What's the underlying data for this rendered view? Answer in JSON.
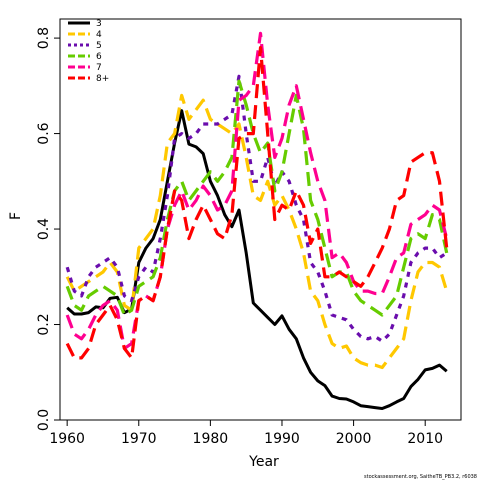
{
  "chart_data": {
    "type": "line",
    "xlabel": "Year",
    "ylabel": "F",
    "xlim": [
      1959,
      2015
    ],
    "ylim": [
      0,
      0.84
    ],
    "x_ticks": [
      "1960",
      "1970",
      "1980",
      "1990",
      "2000",
      "2010"
    ],
    "y_ticks": [
      "0.0",
      "0.2",
      "0.4",
      "0.6",
      "0.8"
    ],
    "legend_position": "top-left",
    "grid": false,
    "credit": "stockassessment.org, SaitheTB_PB3.2, r6038",
    "series": [
      {
        "name": "3",
        "color": "#000000",
        "dash": "solid",
        "x": [
          1960,
          1961,
          1962,
          1963,
          1964,
          1965,
          1966,
          1967,
          1968,
          1969,
          1970,
          1971,
          1972,
          1973,
          1974,
          1975,
          1976,
          1977,
          1978,
          1979,
          1980,
          1981,
          1982,
          1983,
          1984,
          1985,
          1986,
          1987,
          1988,
          1989,
          1990,
          1991,
          1992,
          1993,
          1994,
          1995,
          1996,
          1997,
          1998,
          1999,
          2000,
          2001,
          2002,
          2003,
          2004,
          2005,
          2006,
          2007,
          2008,
          2009,
          2010,
          2011,
          2012,
          2013
        ],
        "y": [
          0.235,
          0.222,
          0.222,
          0.225,
          0.237,
          0.235,
          0.255,
          0.257,
          0.225,
          0.232,
          0.33,
          0.36,
          0.38,
          0.42,
          0.5,
          0.58,
          0.648,
          0.578,
          0.572,
          0.558,
          0.5,
          0.47,
          0.43,
          0.405,
          0.44,
          0.35,
          0.245,
          0.23,
          0.215,
          0.2,
          0.218,
          0.19,
          0.17,
          0.13,
          0.1,
          0.082,
          0.072,
          0.05,
          0.045,
          0.044,
          0.038,
          0.03,
          0.028,
          0.026,
          0.024,
          0.03,
          0.038,
          0.045,
          0.07,
          0.085,
          0.105,
          0.108,
          0.115,
          0.102
        ]
      },
      {
        "name": "4",
        "color": "#ffc800",
        "dash": "long",
        "x": [
          1960,
          1961,
          1962,
          1963,
          1964,
          1965,
          1966,
          1967,
          1968,
          1969,
          1970,
          1971,
          1972,
          1973,
          1974,
          1975,
          1976,
          1977,
          1978,
          1979,
          1980,
          1981,
          1982,
          1983,
          1984,
          1985,
          1986,
          1987,
          1988,
          1989,
          1990,
          1991,
          1992,
          1993,
          1994,
          1995,
          1996,
          1997,
          1998,
          1999,
          2000,
          2001,
          2002,
          2003,
          2004,
          2005,
          2006,
          2007,
          2008,
          2009,
          2010,
          2011,
          2012,
          2013
        ],
        "y": [
          0.3,
          0.27,
          0.28,
          0.29,
          0.3,
          0.31,
          0.33,
          0.31,
          0.24,
          0.23,
          0.36,
          0.38,
          0.4,
          0.47,
          0.58,
          0.6,
          0.68,
          0.63,
          0.65,
          0.67,
          0.63,
          0.62,
          0.61,
          0.6,
          0.62,
          0.55,
          0.47,
          0.46,
          0.5,
          0.45,
          0.47,
          0.44,
          0.4,
          0.35,
          0.27,
          0.25,
          0.2,
          0.16,
          0.15,
          0.155,
          0.13,
          0.12,
          0.115,
          0.115,
          0.11,
          0.13,
          0.15,
          0.17,
          0.25,
          0.31,
          0.33,
          0.33,
          0.32,
          0.27
        ]
      },
      {
        "name": "5",
        "color": "#6a0dad",
        "dash": "dot",
        "x": [
          1960,
          1961,
          1962,
          1963,
          1964,
          1965,
          1966,
          1967,
          1968,
          1969,
          1970,
          1971,
          1972,
          1973,
          1974,
          1975,
          1976,
          1977,
          1978,
          1979,
          1980,
          1981,
          1982,
          1983,
          1984,
          1985,
          1986,
          1987,
          1988,
          1989,
          1990,
          1991,
          1992,
          1993,
          1994,
          1995,
          1996,
          1997,
          1998,
          1999,
          2000,
          2001,
          2002,
          2003,
          2004,
          2005,
          2006,
          2007,
          2008,
          2009,
          2010,
          2011,
          2012,
          2013
        ],
        "y": [
          0.32,
          0.27,
          0.26,
          0.3,
          0.32,
          0.33,
          0.34,
          0.32,
          0.26,
          0.25,
          0.3,
          0.32,
          0.31,
          0.38,
          0.47,
          0.59,
          0.6,
          0.59,
          0.6,
          0.62,
          0.62,
          0.62,
          0.63,
          0.64,
          0.72,
          0.6,
          0.5,
          0.5,
          0.55,
          0.49,
          0.52,
          0.5,
          0.45,
          0.42,
          0.33,
          0.31,
          0.27,
          0.22,
          0.215,
          0.21,
          0.19,
          0.175,
          0.17,
          0.175,
          0.165,
          0.18,
          0.22,
          0.26,
          0.33,
          0.35,
          0.36,
          0.36,
          0.34,
          0.35
        ]
      },
      {
        "name": "6",
        "color": "#66cc00",
        "dash": "long",
        "x": [
          1960,
          1961,
          1962,
          1963,
          1964,
          1965,
          1966,
          1967,
          1968,
          1969,
          1970,
          1971,
          1972,
          1973,
          1974,
          1975,
          1976,
          1977,
          1978,
          1979,
          1980,
          1981,
          1982,
          1983,
          1984,
          1985,
          1986,
          1987,
          1988,
          1989,
          1990,
          1991,
          1992,
          1993,
          1994,
          1995,
          1996,
          1997,
          1998,
          1999,
          2000,
          2001,
          2002,
          2003,
          2004,
          2005,
          2006,
          2007,
          2008,
          2009,
          2010,
          2011,
          2012,
          2013
        ],
        "y": [
          0.28,
          0.24,
          0.23,
          0.26,
          0.27,
          0.28,
          0.27,
          0.26,
          0.22,
          0.23,
          0.28,
          0.29,
          0.3,
          0.34,
          0.42,
          0.48,
          0.5,
          0.46,
          0.48,
          0.5,
          0.52,
          0.5,
          0.52,
          0.55,
          0.71,
          0.66,
          0.6,
          0.56,
          0.58,
          0.48,
          0.52,
          0.6,
          0.68,
          0.61,
          0.46,
          0.42,
          0.36,
          0.3,
          0.31,
          0.31,
          0.27,
          0.25,
          0.24,
          0.23,
          0.22,
          0.24,
          0.26,
          0.32,
          0.38,
          0.39,
          0.38,
          0.43,
          0.42,
          0.35
        ]
      },
      {
        "name": "7",
        "color": "#ff0090",
        "dash": "long",
        "x": [
          1960,
          1961,
          1962,
          1963,
          1964,
          1965,
          1966,
          1967,
          1968,
          1969,
          1970,
          1971,
          1972,
          1973,
          1974,
          1975,
          1976,
          1977,
          1978,
          1979,
          1980,
          1981,
          1982,
          1983,
          1984,
          1985,
          1986,
          1987,
          1988,
          1989,
          1990,
          1991,
          1992,
          1993,
          1994,
          1995,
          1996,
          1997,
          1998,
          1999,
          2000,
          2001,
          2002,
          2003,
          2004,
          2005,
          2006,
          2007,
          2008,
          2009,
          2010,
          2011,
          2012,
          2013
        ],
        "y": [
          0.22,
          0.18,
          0.17,
          0.19,
          0.22,
          0.24,
          0.25,
          0.23,
          0.15,
          0.16,
          0.25,
          0.26,
          0.25,
          0.3,
          0.4,
          0.45,
          0.48,
          0.44,
          0.46,
          0.49,
          0.47,
          0.44,
          0.45,
          0.48,
          0.67,
          0.68,
          0.7,
          0.81,
          0.66,
          0.55,
          0.59,
          0.66,
          0.7,
          0.63,
          0.56,
          0.5,
          0.46,
          0.34,
          0.35,
          0.33,
          0.29,
          0.27,
          0.27,
          0.265,
          0.265,
          0.3,
          0.34,
          0.35,
          0.41,
          0.42,
          0.43,
          0.45,
          0.44,
          0.38
        ]
      },
      {
        "name": "8+",
        "color": "#ff0000",
        "dash": "long",
        "x": [
          1960,
          1961,
          1962,
          1963,
          1964,
          1965,
          1966,
          1967,
          1968,
          1969,
          1970,
          1971,
          1972,
          1973,
          1974,
          1975,
          1976,
          1977,
          1978,
          1979,
          1980,
          1981,
          1982,
          1983,
          1984,
          1985,
          1986,
          1987,
          1988,
          1989,
          1990,
          1991,
          1992,
          1993,
          1994,
          1995,
          1996,
          1997,
          1998,
          1999,
          2000,
          2001,
          2002,
          2003,
          2004,
          2005,
          2006,
          2007,
          2008,
          2009,
          2010,
          2011,
          2012,
          2013
        ],
        "y": [
          0.16,
          0.13,
          0.13,
          0.15,
          0.2,
          0.22,
          0.24,
          0.21,
          0.15,
          0.13,
          0.25,
          0.26,
          0.25,
          0.3,
          0.4,
          0.48,
          0.46,
          0.38,
          0.42,
          0.45,
          0.42,
          0.39,
          0.38,
          0.43,
          0.59,
          0.6,
          0.6,
          0.78,
          0.6,
          0.42,
          0.45,
          0.44,
          0.48,
          0.45,
          0.37,
          0.4,
          0.3,
          0.3,
          0.31,
          0.3,
          0.29,
          0.28,
          0.3,
          0.33,
          0.36,
          0.4,
          0.46,
          0.47,
          0.54,
          0.55,
          0.56,
          0.56,
          0.5,
          0.36
        ]
      }
    ]
  }
}
